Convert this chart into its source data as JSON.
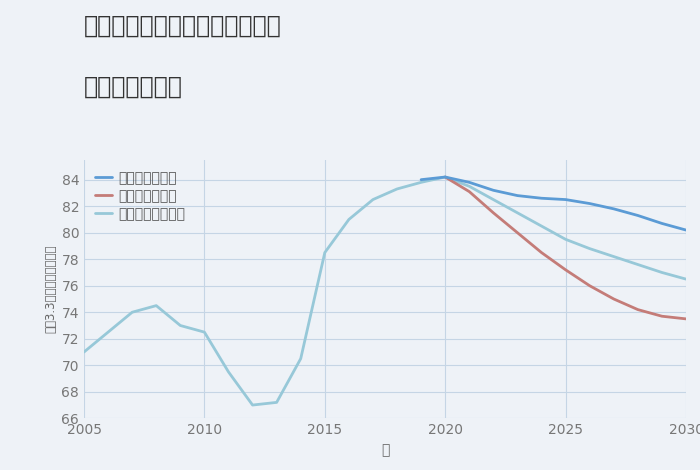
{
  "title_line1": "愛知県名古屋市昭和区池端町の",
  "title_line2": "土地の価格推移",
  "xlabel": "年",
  "ylabel": "坪（3.3㎡）単価（万円）",
  "background_color": "#eef2f7",
  "plot_background": "#eef2f7",
  "ylim": [
    66,
    85.5
  ],
  "yticks": [
    66,
    68,
    70,
    72,
    74,
    76,
    78,
    80,
    82,
    84
  ],
  "xlim": [
    2005,
    2030
  ],
  "xticks": [
    2005,
    2010,
    2015,
    2020,
    2025,
    2030
  ],
  "good_scenario": {
    "label": "グッドシナリオ",
    "color": "#5b9bd5",
    "x": [
      2019,
      2020,
      2021,
      2022,
      2023,
      2024,
      2025,
      2026,
      2027,
      2028,
      2029,
      2030
    ],
    "y": [
      84.0,
      84.2,
      83.8,
      83.2,
      82.8,
      82.6,
      82.5,
      82.2,
      81.8,
      81.3,
      80.7,
      80.2
    ]
  },
  "bad_scenario": {
    "label": "バッドシナリオ",
    "color": "#c47c78",
    "x": [
      2020,
      2021,
      2022,
      2023,
      2024,
      2025,
      2026,
      2027,
      2028,
      2029,
      2030
    ],
    "y": [
      84.2,
      83.1,
      81.5,
      80.0,
      78.5,
      77.2,
      76.0,
      75.0,
      74.2,
      73.7,
      73.5
    ]
  },
  "normal_scenario": {
    "label": "ノーマルシナリオ",
    "color": "#97c8d8",
    "x": [
      2005,
      2006,
      2007,
      2008,
      2009,
      2010,
      2011,
      2012,
      2013,
      2014,
      2015,
      2016,
      2017,
      2018,
      2019,
      2020,
      2021,
      2022,
      2023,
      2024,
      2025,
      2026,
      2027,
      2028,
      2029,
      2030
    ],
    "y": [
      71.0,
      72.5,
      74.0,
      74.5,
      73.0,
      72.5,
      69.5,
      67.0,
      67.2,
      70.5,
      78.5,
      81.0,
      82.5,
      83.3,
      83.8,
      84.2,
      83.5,
      82.5,
      81.5,
      80.5,
      79.5,
      78.8,
      78.2,
      77.6,
      77.0,
      76.5
    ]
  },
  "grid_color": "#c5d5e5",
  "line_width": 2.0,
  "title_fontsize": 17,
  "tick_fontsize": 10,
  "label_fontsize": 10,
  "legend_fontsize": 10
}
